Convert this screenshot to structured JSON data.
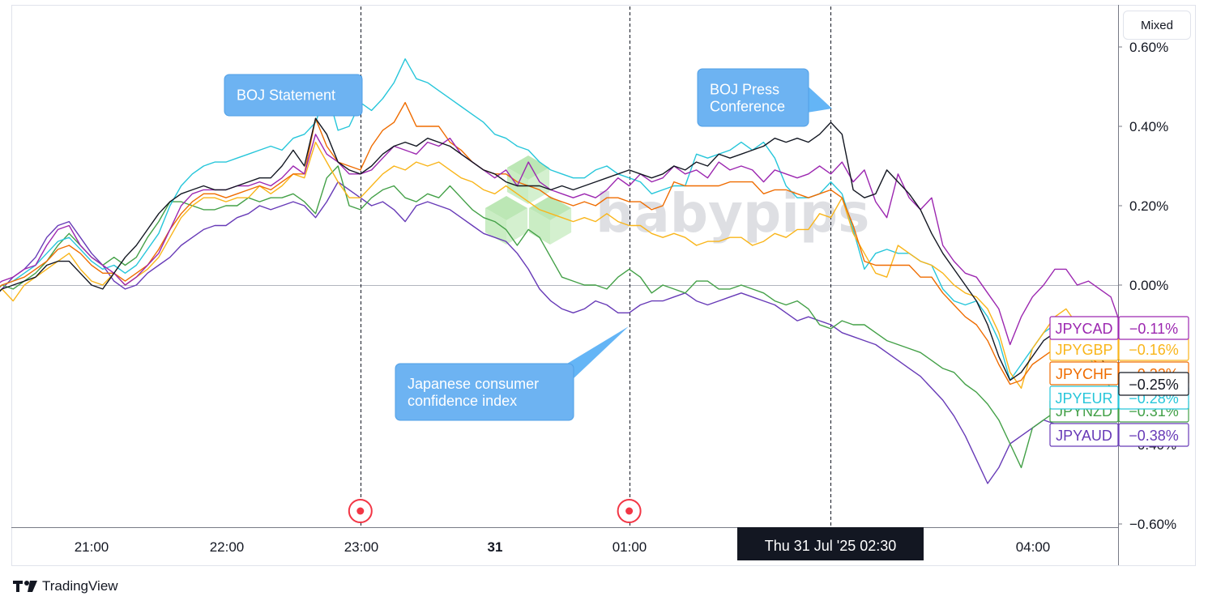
{
  "toolbar": {
    "scale_mode_label": "Mixed"
  },
  "footer": {
    "brand": "TradingView",
    "logo_icon": "tradingview-logo-icon"
  },
  "watermark": {
    "text": "babypips",
    "icon": "babypips-cube-logo-icon",
    "color": "#6dcc5c"
  },
  "crosshair": {
    "time_label": "Thu 31 Jul '25   02:30"
  },
  "chart_data": {
    "type": "line",
    "x_ticks": [
      "21:00",
      "22:00",
      "23:00",
      "31",
      "01:00",
      "04:00"
    ],
    "y_ticks": [
      "0.60%",
      "0.40%",
      "0.20%",
      "0.00%",
      "−0.60%"
    ],
    "ylim": [
      -0.6,
      0.6
    ],
    "grid": false,
    "x": [
      "20:00",
      "20:05",
      "20:10",
      "20:15",
      "20:20",
      "20:25",
      "20:30",
      "20:35",
      "20:40",
      "20:45",
      "20:50",
      "20:55",
      "21:00",
      "21:05",
      "21:10",
      "21:15",
      "21:20",
      "21:25",
      "21:30",
      "21:35",
      "21:40",
      "21:45",
      "21:50",
      "21:55",
      "22:00",
      "22:05",
      "22:10",
      "22:15",
      "22:20",
      "22:25",
      "22:30",
      "22:35",
      "22:40",
      "22:45",
      "22:50",
      "22:55",
      "23:00",
      "23:05",
      "23:10",
      "23:15",
      "23:20",
      "23:25",
      "23:30",
      "23:35",
      "23:40",
      "23:45",
      "23:50",
      "23:55",
      "00:00",
      "00:05",
      "00:10",
      "00:15",
      "00:20",
      "00:25",
      "00:30",
      "00:35",
      "00:40",
      "00:45",
      "00:50",
      "00:55",
      "01:00",
      "01:05",
      "01:10",
      "01:15",
      "01:20",
      "01:25",
      "01:30",
      "01:35",
      "01:40",
      "01:45",
      "01:50",
      "01:55",
      "02:00",
      "02:05",
      "02:10",
      "02:15",
      "02:20",
      "02:25",
      "02:30",
      "02:35",
      "02:40",
      "02:45",
      "02:50",
      "02:55",
      "03:00",
      "03:05",
      "03:10",
      "03:15",
      "03:20",
      "03:25",
      "03:30",
      "03:35",
      "03:40",
      "03:45",
      "03:50",
      "03:55",
      "04:00",
      "04:05",
      "04:10",
      "04:15",
      "04:20",
      "04:25",
      "04:30",
      "04:35",
      "04:40"
    ],
    "series": [
      {
        "name": "JPYCAD",
        "color": "#9c27b0",
        "last_label": "−0.11%",
        "values": [
          0.0,
          0.02,
          0.0,
          -0.01,
          0.01,
          0.02,
          0.04,
          0.05,
          0.1,
          0.14,
          0.15,
          0.1,
          0.07,
          0.05,
          0.03,
          0.0,
          0.02,
          0.05,
          0.08,
          0.14,
          0.2,
          0.23,
          0.24,
          0.24,
          0.24,
          0.25,
          0.25,
          0.26,
          0.25,
          0.27,
          0.3,
          0.28,
          0.38,
          0.33,
          0.31,
          0.28,
          0.28,
          0.29,
          0.32,
          0.35,
          0.34,
          0.33,
          0.36,
          0.35,
          0.37,
          0.33,
          0.31,
          0.29,
          0.27,
          0.29,
          0.25,
          0.31,
          0.26,
          0.24,
          0.23,
          0.22,
          0.23,
          0.22,
          0.24,
          0.27,
          0.25,
          0.28,
          0.26,
          0.27,
          0.3,
          0.28,
          0.29,
          0.27,
          0.31,
          0.29,
          0.3,
          0.29,
          0.26,
          0.29,
          0.28,
          0.27,
          0.28,
          0.3,
          0.28,
          0.31,
          0.26,
          0.29,
          0.21,
          0.17,
          0.28,
          0.22,
          0.19,
          0.22,
          0.1,
          0.06,
          0.03,
          0.02,
          -0.02,
          -0.06,
          -0.15,
          -0.08,
          -0.03,
          0.0,
          0.04,
          0.04,
          0.0,
          0.01,
          -0.01,
          -0.03,
          -0.11
        ]
      },
      {
        "name": "JPYGBP",
        "color": "#f9b51a",
        "last_label": "−0.16%",
        "values": [
          0.0,
          0.01,
          -0.02,
          -0.03,
          -0.01,
          -0.04,
          0.0,
          0.02,
          0.04,
          0.06,
          0.08,
          0.04,
          0.01,
          0.0,
          0.03,
          0.0,
          0.02,
          0.04,
          0.07,
          0.12,
          0.17,
          0.2,
          0.22,
          0.22,
          0.21,
          0.22,
          0.22,
          0.25,
          0.23,
          0.25,
          0.28,
          0.27,
          0.36,
          0.31,
          0.26,
          0.22,
          0.22,
          0.25,
          0.28,
          0.3,
          0.29,
          0.31,
          0.3,
          0.31,
          0.29,
          0.27,
          0.26,
          0.24,
          0.23,
          0.25,
          0.23,
          0.21,
          0.19,
          0.18,
          0.17,
          0.16,
          0.17,
          0.16,
          0.18,
          0.16,
          0.15,
          0.15,
          0.13,
          0.12,
          0.13,
          0.12,
          0.1,
          0.11,
          0.11,
          0.12,
          0.12,
          0.1,
          0.11,
          0.13,
          0.12,
          0.14,
          0.14,
          0.18,
          0.17,
          0.22,
          0.13,
          0.08,
          0.03,
          0.02,
          0.1,
          0.08,
          0.06,
          0.05,
          0.03,
          0.0,
          -0.02,
          -0.03,
          -0.06,
          -0.12,
          -0.22,
          -0.26,
          -0.16,
          -0.12,
          -0.08,
          -0.06,
          -0.1,
          -0.12,
          -0.14,
          -0.15,
          -0.16
        ]
      },
      {
        "name": "JPYCHF",
        "color": "#ef6c00",
        "last_label": "−0.22%",
        "values": [
          0.0,
          0.01,
          -0.01,
          -0.02,
          0.0,
          0.01,
          0.02,
          0.04,
          0.06,
          0.09,
          0.1,
          0.08,
          0.05,
          0.03,
          0.03,
          0.01,
          0.03,
          0.05,
          0.09,
          0.14,
          0.18,
          0.21,
          0.23,
          0.23,
          0.22,
          0.23,
          0.24,
          0.25,
          0.24,
          0.26,
          0.28,
          0.28,
          0.42,
          0.35,
          0.31,
          0.3,
          0.29,
          0.35,
          0.39,
          0.41,
          0.46,
          0.4,
          0.4,
          0.4,
          0.36,
          0.34,
          0.31,
          0.29,
          0.28,
          0.28,
          0.26,
          0.25,
          0.24,
          0.22,
          0.21,
          0.2,
          0.21,
          0.2,
          0.22,
          0.22,
          0.21,
          0.21,
          0.19,
          0.2,
          0.26,
          0.25,
          0.25,
          0.25,
          0.25,
          0.26,
          0.26,
          0.26,
          0.23,
          0.24,
          0.24,
          0.23,
          0.22,
          0.23,
          0.24,
          0.22,
          0.15,
          0.06,
          0.05,
          0.05,
          0.05,
          0.05,
          0.02,
          0.02,
          -0.02,
          -0.05,
          -0.08,
          -0.1,
          -0.14,
          -0.2,
          -0.25,
          -0.24,
          -0.2,
          -0.18,
          -0.16,
          -0.15,
          -0.16,
          -0.18,
          -0.2,
          -0.21,
          -0.22
        ]
      },
      {
        "name": "JPYEUR",
        "color": "#26c6da",
        "last_label": "−0.28%",
        "values": [
          0.0,
          0.02,
          -0.01,
          -0.03,
          0.0,
          0.01,
          0.03,
          0.05,
          0.08,
          0.11,
          0.12,
          0.09,
          0.06,
          0.04,
          0.05,
          0.03,
          0.05,
          0.09,
          0.13,
          0.2,
          0.25,
          0.28,
          0.3,
          0.31,
          0.31,
          0.32,
          0.33,
          0.34,
          0.35,
          0.34,
          0.37,
          0.38,
          0.41,
          0.49,
          0.39,
          0.4,
          0.46,
          0.44,
          0.47,
          0.51,
          0.57,
          0.52,
          0.51,
          0.49,
          0.47,
          0.45,
          0.43,
          0.41,
          0.38,
          0.37,
          0.35,
          0.34,
          0.31,
          0.29,
          0.28,
          0.27,
          0.27,
          0.29,
          0.3,
          0.28,
          0.27,
          0.26,
          0.23,
          0.24,
          0.25,
          0.25,
          0.33,
          0.32,
          0.33,
          0.34,
          0.36,
          0.34,
          0.36,
          0.32,
          0.25,
          0.22,
          0.22,
          0.23,
          0.26,
          0.23,
          0.14,
          0.04,
          0.08,
          0.09,
          0.08,
          0.08,
          0.06,
          0.05,
          -0.01,
          -0.04,
          -0.05,
          -0.04,
          -0.08,
          -0.14,
          -0.24,
          -0.2,
          -0.16,
          -0.12,
          -0.1,
          -0.12,
          -0.14,
          -0.18,
          -0.22,
          -0.26,
          -0.28
        ]
      },
      {
        "name": "JPYNZD",
        "color": "#43a047",
        "last_label": "−0.31%",
        "values": [
          0.0,
          0.01,
          -0.01,
          -0.02,
          0.0,
          -0.01,
          0.01,
          0.03,
          0.06,
          0.1,
          0.13,
          0.1,
          0.07,
          0.05,
          0.07,
          0.05,
          0.07,
          0.12,
          0.16,
          0.21,
          0.21,
          0.2,
          0.19,
          0.19,
          0.2,
          0.2,
          0.22,
          0.21,
          0.22,
          0.22,
          0.23,
          0.21,
          0.18,
          0.27,
          0.3,
          0.2,
          0.19,
          0.22,
          0.24,
          0.25,
          0.22,
          0.21,
          0.23,
          0.22,
          0.25,
          0.22,
          0.19,
          0.17,
          0.16,
          0.14,
          0.1,
          0.14,
          0.12,
          0.07,
          0.02,
          0.01,
          0.0,
          0.0,
          -0.01,
          0.02,
          0.04,
          0.02,
          -0.02,
          0.0,
          -0.01,
          -0.02,
          0.01,
          0.01,
          -0.01,
          -0.01,
          0.0,
          -0.01,
          -0.02,
          -0.04,
          -0.05,
          -0.04,
          -0.06,
          -0.1,
          -0.11,
          -0.09,
          -0.1,
          -0.1,
          -0.12,
          -0.14,
          -0.15,
          -0.16,
          -0.17,
          -0.19,
          -0.21,
          -0.22,
          -0.25,
          -0.27,
          -0.3,
          -0.34,
          -0.4,
          -0.46,
          -0.36,
          -0.34,
          -0.32,
          -0.3,
          -0.3,
          -0.31,
          -0.31,
          -0.31,
          -0.31
        ]
      },
      {
        "name": "JPYAUD",
        "color": "#673ab7",
        "last_label": "−0.38%",
        "values": [
          0.0,
          0.01,
          -0.01,
          -0.03,
          -0.01,
          0.02,
          0.04,
          0.07,
          0.12,
          0.15,
          0.16,
          0.12,
          0.08,
          0.05,
          0.01,
          -0.01,
          0.0,
          0.03,
          0.05,
          0.07,
          0.1,
          0.12,
          0.14,
          0.15,
          0.15,
          0.17,
          0.18,
          0.2,
          0.19,
          0.2,
          0.21,
          0.2,
          0.17,
          0.21,
          0.26,
          0.24,
          0.22,
          0.2,
          0.21,
          0.19,
          0.16,
          0.2,
          0.21,
          0.2,
          0.19,
          0.17,
          0.15,
          0.13,
          0.12,
          0.11,
          0.08,
          0.04,
          -0.01,
          -0.04,
          -0.06,
          -0.07,
          -0.06,
          -0.04,
          -0.05,
          -0.07,
          -0.07,
          -0.05,
          -0.04,
          -0.04,
          -0.03,
          -0.02,
          -0.04,
          -0.05,
          -0.04,
          -0.03,
          -0.02,
          -0.03,
          -0.04,
          -0.05,
          -0.07,
          -0.09,
          -0.08,
          -0.09,
          -0.1,
          -0.12,
          -0.13,
          -0.14,
          -0.15,
          -0.17,
          -0.19,
          -0.21,
          -0.23,
          -0.26,
          -0.29,
          -0.33,
          -0.38,
          -0.44,
          -0.5,
          -0.46,
          -0.4,
          -0.38,
          -0.36,
          -0.34,
          -0.35,
          -0.36,
          -0.37,
          -0.38,
          -0.38,
          -0.38,
          -0.38
        ]
      },
      {
        "name": "",
        "color": "#131722",
        "last_label": "−0.25%",
        "values": [
          -0.03,
          -0.03,
          -0.04,
          -0.04,
          -0.01,
          0.0,
          0.01,
          0.02,
          0.05,
          0.06,
          0.06,
          0.03,
          0.0,
          -0.01,
          0.03,
          0.07,
          0.1,
          0.14,
          0.18,
          0.21,
          0.23,
          0.24,
          0.25,
          0.24,
          0.24,
          0.25,
          0.26,
          0.27,
          0.27,
          0.3,
          0.34,
          0.3,
          0.42,
          0.38,
          0.31,
          0.29,
          0.28,
          0.3,
          0.33,
          0.35,
          0.36,
          0.35,
          0.37,
          0.36,
          0.35,
          0.33,
          0.31,
          0.29,
          0.28,
          0.26,
          0.25,
          0.25,
          0.25,
          0.24,
          0.25,
          0.24,
          0.25,
          0.26,
          0.27,
          0.28,
          0.29,
          0.28,
          0.27,
          0.28,
          0.3,
          0.29,
          0.31,
          0.3,
          0.33,
          0.32,
          0.33,
          0.34,
          0.35,
          0.37,
          0.36,
          0.37,
          0.36,
          0.38,
          0.41,
          0.38,
          0.24,
          0.22,
          0.23,
          0.29,
          0.26,
          0.23,
          0.19,
          0.13,
          0.08,
          0.04,
          0.0,
          -0.04,
          -0.1,
          -0.18,
          -0.24,
          -0.22,
          -0.18,
          -0.14,
          -0.12,
          -0.1,
          -0.12,
          -0.15,
          -0.18,
          -0.22,
          -0.25
        ]
      }
    ],
    "events": [
      {
        "time": "23:00",
        "label": "BOJ Statement"
      },
      {
        "time": "01:00",
        "label": "Japanese consumer confidence index"
      },
      {
        "time": "02:30",
        "label": "BOJ Press Conference"
      }
    ],
    "event_markers": [
      "23:00",
      "01:00"
    ]
  }
}
